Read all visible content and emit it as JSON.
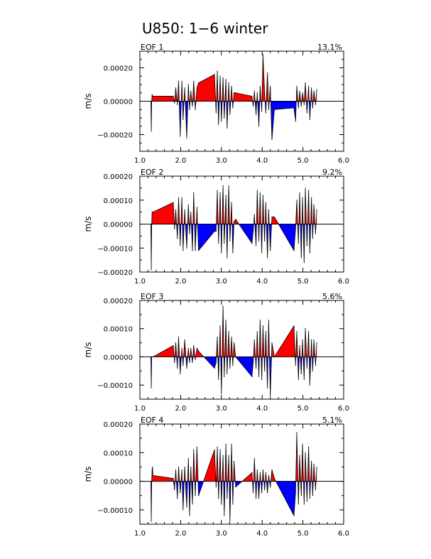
{
  "title": "U850: 1−6 winter",
  "colors": {
    "positive": "#ff0000",
    "negative": "#0000ff",
    "line": "#000000",
    "zero": "#000000"
  },
  "chart_data": [
    {
      "type": "area",
      "panel_label": "EOF 1",
      "variance": "13.1%",
      "ylabel": "m/s",
      "xlim": [
        1.0,
        6.0
      ],
      "ylim": [
        -0.0003,
        0.0003
      ],
      "xticks": [
        1.0,
        2.0,
        3.0,
        4.0,
        5.0,
        6.0
      ],
      "xtick_labels": [
        "1.0",
        "2.0",
        "3.0",
        "4.0",
        "5.0",
        "6.0"
      ],
      "yticks": [
        -0.0002,
        0.0,
        0.0002
      ],
      "ytick_labels": [
        "−0.00020",
        "0.00000",
        "0.00020"
      ],
      "x": [
        1.27,
        1.28,
        1.29,
        1.3,
        1.31,
        1.32,
        1.82,
        1.85,
        1.88,
        1.92,
        1.95,
        1.99,
        2.03,
        2.06,
        2.1,
        2.15,
        2.19,
        2.22,
        2.25,
        2.29,
        2.32,
        2.36,
        2.4,
        2.44,
        2.83,
        2.87,
        2.9,
        2.93,
        2.97,
        3.0,
        3.04,
        3.07,
        3.11,
        3.14,
        3.18,
        3.21,
        3.25,
        3.28,
        3.31,
        3.35,
        3.75,
        3.78,
        3.81,
        3.85,
        3.88,
        3.92,
        3.95,
        3.99,
        4.02,
        4.06,
        4.09,
        4.13,
        4.16,
        4.2,
        4.24,
        4.3,
        4.78,
        4.82,
        4.85,
        4.89,
        4.92,
        4.96,
        4.99,
        5.03,
        5.06,
        5.1,
        5.14,
        5.17,
        5.21,
        5.24,
        5.27,
        5.31,
        5.34
      ],
      "y": [
        0.0,
        -0.00018,
        0.0,
        4e-05,
        3e-05,
        3e-05,
        3e-05,
        -1e-05,
        8e-05,
        -2e-05,
        0.00012,
        -0.00021,
        0.00012,
        -0.00011,
        8e-05,
        -0.00022,
        0.0001,
        -5e-05,
        6e-05,
        -3e-05,
        0.00012,
        -5e-05,
        8e-05,
        0.00011,
        0.00016,
        -7e-05,
        0.00018,
        -0.00014,
        0.00015,
        -0.00012,
        0.00014,
        -0.0001,
        0.00013,
        -0.00016,
        0.00011,
        -8e-05,
        9e-05,
        -4e-05,
        5e-05,
        5e-05,
        3e-05,
        -3e-05,
        6e-05,
        -8e-05,
        5e-05,
        -0.00015,
        9e-05,
        -6e-05,
        0.00028,
        5e-05,
        -7e-05,
        0.00017,
        -5e-05,
        9e-05,
        -0.00023,
        -5e-05,
        -4e-05,
        -0.00012,
        9e-05,
        -4e-05,
        6e-05,
        -3e-05,
        5e-05,
        -2e-05,
        0.00011,
        -7e-05,
        9e-05,
        -0.00011,
        8e-05,
        -4e-05,
        6e-05,
        -2e-05,
        7e-05
      ]
    },
    {
      "type": "area",
      "panel_label": "EOF 2",
      "variance": "9.2%",
      "ylabel": "m/s",
      "xlim": [
        1.0,
        6.0
      ],
      "ylim": [
        -0.0002,
        0.0002
      ],
      "xticks": [
        1.0,
        2.0,
        3.0,
        4.0,
        5.0,
        6.0
      ],
      "xtick_labels": [
        "1.0",
        "2.0",
        "3.0",
        "4.0",
        "5.0",
        "6.0"
      ],
      "yticks": [
        -0.0002,
        -0.0001,
        0.0,
        0.0001,
        0.0002
      ],
      "ytick_labels": [
        "−0.00020",
        "−0.00010",
        "0.00000",
        "0.00010",
        "0.00020"
      ],
      "x": [
        1.27,
        1.28,
        1.29,
        1.3,
        1.31,
        1.32,
        1.82,
        1.85,
        1.88,
        1.92,
        1.95,
        1.99,
        2.03,
        2.06,
        2.1,
        2.15,
        2.19,
        2.22,
        2.25,
        2.29,
        2.32,
        2.36,
        2.4,
        2.44,
        2.83,
        2.87,
        2.9,
        2.93,
        2.97,
        3.0,
        3.04,
        3.07,
        3.11,
        3.14,
        3.18,
        3.21,
        3.25,
        3.28,
        3.31,
        3.35,
        3.75,
        3.78,
        3.81,
        3.85,
        3.88,
        3.92,
        3.95,
        3.99,
        4.02,
        4.06,
        4.09,
        4.13,
        4.16,
        4.2,
        4.24,
        4.3,
        4.78,
        4.82,
        4.85,
        4.89,
        4.92,
        4.96,
        4.99,
        5.03,
        5.06,
        5.1,
        5.14,
        5.17,
        5.21,
        5.24,
        5.27,
        5.31,
        5.34
      ],
      "y": [
        0.0,
        -0.00019,
        0.0,
        5e-05,
        5e-05,
        5e-05,
        9e-05,
        -2e-05,
        6e-05,
        -6e-05,
        0.00011,
        -9e-05,
        0.00011,
        -0.00011,
        6e-05,
        -0.0001,
        8e-05,
        -4e-05,
        5e-05,
        -0.00011,
        0.00013,
        -0.00011,
        7e-05,
        -0.00011,
        -3e-05,
        -3e-05,
        0.00014,
        -8e-05,
        0.00013,
        -0.00012,
        0.00016,
        -8e-05,
        0.00012,
        -0.00014,
        0.00016,
        -7e-05,
        9e-05,
        -0.00012,
        1e-05,
        2e-05,
        -8e-05,
        -3e-05,
        4e-05,
        -9e-05,
        0.00014,
        -7e-05,
        0.00013,
        -0.00012,
        0.00012,
        -7e-05,
        9e-05,
        -0.00014,
        6e-05,
        -0.00011,
        3e-05,
        3e-05,
        -0.00011,
        -2e-05,
        0.0001,
        -8e-05,
        0.00013,
        -0.00014,
        0.00011,
        -0.00016,
        0.00015,
        -9e-05,
        0.00014,
        -0.00012,
        0.00011,
        -6e-05,
        8e-05,
        -4e-05,
        6e-05
      ]
    },
    {
      "type": "area",
      "panel_label": "EOF 3",
      "variance": "5.6%",
      "ylabel": "m/s",
      "xlim": [
        1.0,
        6.0
      ],
      "ylim": [
        -0.00015,
        0.0002
      ],
      "xticks": [
        1.0,
        2.0,
        3.0,
        4.0,
        5.0,
        6.0
      ],
      "xtick_labels": [
        "1.0",
        "2.0",
        "3.0",
        "4.0",
        "5.0",
        "6.0"
      ],
      "yticks": [
        -0.0001,
        0.0,
        0.0001,
        0.0002
      ],
      "ytick_labels": [
        "−0.00010",
        "0.00000",
        "0.00010",
        "0.00020"
      ],
      "x": [
        1.27,
        1.28,
        1.29,
        1.3,
        1.31,
        1.32,
        1.82,
        1.85,
        1.88,
        1.92,
        1.95,
        1.99,
        2.03,
        2.06,
        2.1,
        2.15,
        2.19,
        2.22,
        2.25,
        2.29,
        2.32,
        2.36,
        2.4,
        2.44,
        2.83,
        2.87,
        2.9,
        2.93,
        2.97,
        3.0,
        3.04,
        3.07,
        3.11,
        3.14,
        3.18,
        3.21,
        3.25,
        3.28,
        3.31,
        3.35,
        3.75,
        3.78,
        3.81,
        3.85,
        3.88,
        3.92,
        3.95,
        3.99,
        4.02,
        4.06,
        4.09,
        4.13,
        4.16,
        4.2,
        4.24,
        4.3,
        4.78,
        4.82,
        4.85,
        4.89,
        4.92,
        4.96,
        4.99,
        5.03,
        5.06,
        5.1,
        5.14,
        5.17,
        5.21,
        5.24,
        5.27,
        5.31,
        5.34
      ],
      "y": [
        0.0,
        -0.00011,
        0.0,
        0.0,
        0.0,
        0.0,
        4e-05,
        -2e-05,
        5e-05,
        -4e-05,
        7e-05,
        -6e-05,
        3e-05,
        -3e-05,
        6e-05,
        -4e-05,
        3e-05,
        -2e-05,
        3e-05,
        -2e-05,
        4e-05,
        -1e-05,
        3e-05,
        2e-05,
        -4e-05,
        -2e-05,
        7e-05,
        -8e-05,
        0.00011,
        -0.00013,
        0.00018,
        -7e-05,
        0.00013,
        -6e-05,
        9e-05,
        -4e-05,
        7e-05,
        -3e-05,
        5e-05,
        0.0,
        -7e-05,
        -2e-05,
        6e-05,
        -4e-05,
        9e-05,
        -7e-05,
        0.00013,
        -8e-05,
        0.00011,
        -5e-05,
        9e-05,
        -0.00011,
        0.00013,
        -0.00014,
        5e-05,
        0.0,
        0.00011,
        -3e-05,
        9e-05,
        -8e-05,
        4e-05,
        -6e-05,
        6e-05,
        -8e-05,
        0.0001,
        -4e-05,
        9e-05,
        -0.0001,
        6e-05,
        -5e-05,
        6e-05,
        -3e-05,
        5e-05
      ]
    },
    {
      "type": "area",
      "panel_label": "EOF 4",
      "variance": "5.1%",
      "ylabel": "m/s",
      "xlim": [
        1.0,
        6.0
      ],
      "ylim": [
        -0.00015,
        0.0002
      ],
      "xticks": [
        1.0,
        2.0,
        3.0,
        4.0,
        5.0,
        6.0
      ],
      "xtick_labels": [
        "1.0",
        "2.0",
        "3.0",
        "4.0",
        "5.0",
        "6.0"
      ],
      "yticks": [
        -0.0001,
        0.0,
        0.0001,
        0.0002
      ],
      "ytick_labels": [
        "−0.00010",
        "0.00000",
        "0.00010",
        "0.00020"
      ],
      "x": [
        1.27,
        1.28,
        1.29,
        1.3,
        1.31,
        1.32,
        1.82,
        1.85,
        1.88,
        1.92,
        1.95,
        1.99,
        2.03,
        2.06,
        2.1,
        2.15,
        2.19,
        2.22,
        2.25,
        2.29,
        2.32,
        2.36,
        2.4,
        2.44,
        2.83,
        2.87,
        2.9,
        2.93,
        2.97,
        3.0,
        3.04,
        3.07,
        3.11,
        3.14,
        3.18,
        3.21,
        3.25,
        3.28,
        3.31,
        3.35,
        3.75,
        3.78,
        3.81,
        3.85,
        3.88,
        3.92,
        3.95,
        3.99,
        4.02,
        4.06,
        4.09,
        4.13,
        4.16,
        4.2,
        4.24,
        4.3,
        4.78,
        4.82,
        4.85,
        4.89,
        4.92,
        4.96,
        4.99,
        5.03,
        5.06,
        5.1,
        5.14,
        5.17,
        5.21,
        5.24,
        5.27,
        5.31,
        5.34
      ],
      "y": [
        0.0,
        -0.00014,
        0.0,
        4e-05,
        5e-05,
        2e-05,
        1e-05,
        -3e-05,
        4e-05,
        -6e-05,
        5e-05,
        -4e-05,
        4e-05,
        -0.0001,
        5e-05,
        -9e-05,
        8e-05,
        -0.00012,
        5e-05,
        -8e-05,
        0.00011,
        -5e-05,
        0.00012,
        -5e-05,
        0.00011,
        -2e-05,
        0.00012,
        -6e-05,
        0.00011,
        -8e-05,
        9e-05,
        -0.00012,
        0.00013,
        -6e-05,
        9e-05,
        -0.00014,
        0.00013,
        -8e-05,
        7e-05,
        -2e-05,
        3e-05,
        -4e-05,
        8e-05,
        -6e-05,
        4e-05,
        -6e-05,
        3e-05,
        -4e-05,
        4e-05,
        -3e-05,
        3e-05,
        -4e-05,
        2e-05,
        -2e-05,
        4e-05,
        1e-05,
        -0.00012,
        -4e-05,
        0.00017,
        -8e-05,
        9e-05,
        -5e-05,
        0.00013,
        -8e-05,
        0.0001,
        -7e-05,
        0.00012,
        -6e-05,
        7e-05,
        -5e-05,
        6e-05,
        -3e-05,
        5e-05
      ]
    }
  ]
}
